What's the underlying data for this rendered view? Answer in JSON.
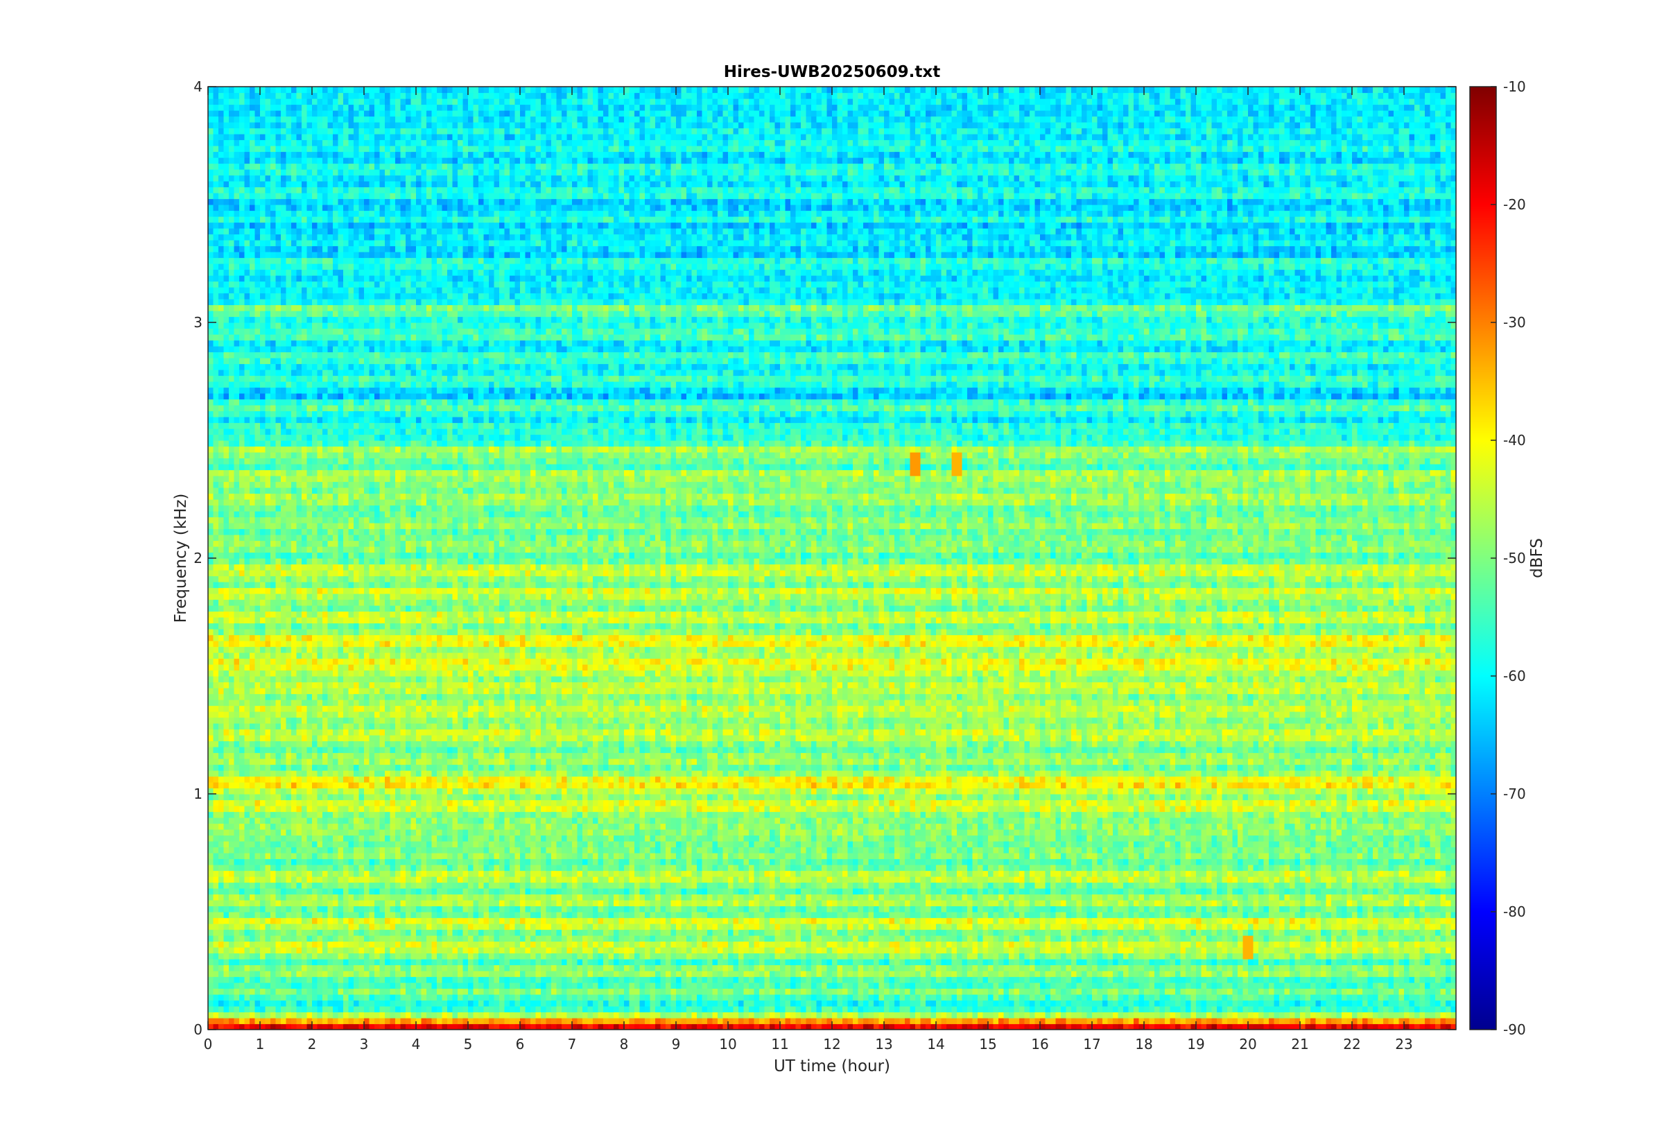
{
  "chart_data": {
    "type": "heatmap",
    "title": "Hires-UWB20250609.txt",
    "xlabel": "UT time (hour)",
    "ylabel": "Frequency (kHz)",
    "xlim": [
      0,
      24
    ],
    "ylim": [
      0,
      4
    ],
    "x_ticks": [
      "0",
      "1",
      "2",
      "3",
      "4",
      "5",
      "6",
      "7",
      "8",
      "9",
      "10",
      "11",
      "12",
      "13",
      "14",
      "15",
      "16",
      "17",
      "18",
      "19",
      "20",
      "21",
      "22",
      "23"
    ],
    "y_ticks": [
      "0",
      "1",
      "2",
      "3",
      "4"
    ],
    "colorbar": {
      "label": "dBFS",
      "range": [
        -90,
        -10
      ],
      "ticks": [
        "-10",
        "-20",
        "-30",
        "-40",
        "-50",
        "-60",
        "-70",
        "-80",
        "-90"
      ],
      "colormap": "jet"
    },
    "frequency_profile_kHz": [
      {
        "f": 0.05,
        "dbfs": -38
      },
      {
        "f": 0.1,
        "dbfs": -62
      },
      {
        "f": 0.15,
        "dbfs": -50
      },
      {
        "f": 0.2,
        "dbfs": -56
      },
      {
        "f": 0.25,
        "dbfs": -48
      },
      {
        "f": 0.3,
        "dbfs": -55
      },
      {
        "f": 0.35,
        "dbfs": -40
      },
      {
        "f": 0.4,
        "dbfs": -55
      },
      {
        "f": 0.45,
        "dbfs": -40
      },
      {
        "f": 0.5,
        "dbfs": -55
      },
      {
        "f": 0.55,
        "dbfs": -45
      },
      {
        "f": 0.6,
        "dbfs": -55
      },
      {
        "f": 0.65,
        "dbfs": -42
      },
      {
        "f": 0.7,
        "dbfs": -56
      },
      {
        "f": 0.75,
        "dbfs": -48
      },
      {
        "f": 0.8,
        "dbfs": -52
      },
      {
        "f": 0.85,
        "dbfs": -46
      },
      {
        "f": 0.9,
        "dbfs": -50
      },
      {
        "f": 0.95,
        "dbfs": -40
      },
      {
        "f": 1.0,
        "dbfs": -50
      },
      {
        "f": 1.05,
        "dbfs": -38
      },
      {
        "f": 1.1,
        "dbfs": -52
      },
      {
        "f": 1.15,
        "dbfs": -46
      },
      {
        "f": 1.2,
        "dbfs": -54
      },
      {
        "f": 1.25,
        "dbfs": -42
      },
      {
        "f": 1.3,
        "dbfs": -52
      },
      {
        "f": 1.35,
        "dbfs": -42
      },
      {
        "f": 1.4,
        "dbfs": -50
      },
      {
        "f": 1.45,
        "dbfs": -42
      },
      {
        "f": 1.5,
        "dbfs": -50
      },
      {
        "f": 1.55,
        "dbfs": -38
      },
      {
        "f": 1.6,
        "dbfs": -48
      },
      {
        "f": 1.65,
        "dbfs": -40
      },
      {
        "f": 1.7,
        "dbfs": -52
      },
      {
        "f": 1.75,
        "dbfs": -42
      },
      {
        "f": 1.8,
        "dbfs": -52
      },
      {
        "f": 1.85,
        "dbfs": -42
      },
      {
        "f": 1.9,
        "dbfs": -52
      },
      {
        "f": 1.95,
        "dbfs": -40
      },
      {
        "f": 2.0,
        "dbfs": -54
      },
      {
        "f": 2.05,
        "dbfs": -46
      },
      {
        "f": 2.1,
        "dbfs": -54
      },
      {
        "f": 2.15,
        "dbfs": -46
      },
      {
        "f": 2.2,
        "dbfs": -55
      },
      {
        "f": 2.25,
        "dbfs": -46
      },
      {
        "f": 2.3,
        "dbfs": -54
      },
      {
        "f": 2.35,
        "dbfs": -44
      },
      {
        "f": 2.4,
        "dbfs": -56
      },
      {
        "f": 2.45,
        "dbfs": -45
      },
      {
        "f": 2.5,
        "dbfs": -58
      },
      {
        "f": 2.55,
        "dbfs": -58
      },
      {
        "f": 2.6,
        "dbfs": -60
      },
      {
        "f": 2.65,
        "dbfs": -52
      },
      {
        "f": 2.7,
        "dbfs": -66
      },
      {
        "f": 2.75,
        "dbfs": -52
      },
      {
        "f": 2.8,
        "dbfs": -60
      },
      {
        "f": 2.85,
        "dbfs": -54
      },
      {
        "f": 2.9,
        "dbfs": -62
      },
      {
        "f": 2.95,
        "dbfs": -53
      },
      {
        "f": 3.0,
        "dbfs": -60
      },
      {
        "f": 3.05,
        "dbfs": -50
      },
      {
        "f": 3.1,
        "dbfs": -60
      },
      {
        "f": 3.15,
        "dbfs": -60
      },
      {
        "f": 3.2,
        "dbfs": -64
      },
      {
        "f": 3.25,
        "dbfs": -56
      },
      {
        "f": 3.3,
        "dbfs": -64
      },
      {
        "f": 3.35,
        "dbfs": -60
      },
      {
        "f": 3.4,
        "dbfs": -64
      },
      {
        "f": 3.45,
        "dbfs": -58
      },
      {
        "f": 3.5,
        "dbfs": -64
      },
      {
        "f": 3.55,
        "dbfs": -56
      },
      {
        "f": 3.6,
        "dbfs": -62
      },
      {
        "f": 3.65,
        "dbfs": -58
      },
      {
        "f": 3.7,
        "dbfs": -64
      },
      {
        "f": 3.75,
        "dbfs": -58
      },
      {
        "f": 3.8,
        "dbfs": -62
      },
      {
        "f": 3.85,
        "dbfs": -60
      },
      {
        "f": 3.9,
        "dbfs": -64
      },
      {
        "f": 3.95,
        "dbfs": -58
      },
      {
        "f": 4.0,
        "dbfs": -62
      }
    ],
    "notable_features": [
      {
        "x": 13.6,
        "f": 2.4,
        "dbfs": -32
      },
      {
        "x": 14.4,
        "f": 2.4,
        "dbfs": -34
      },
      {
        "x": 20.0,
        "f": 0.35,
        "dbfs": -34
      }
    ]
  }
}
